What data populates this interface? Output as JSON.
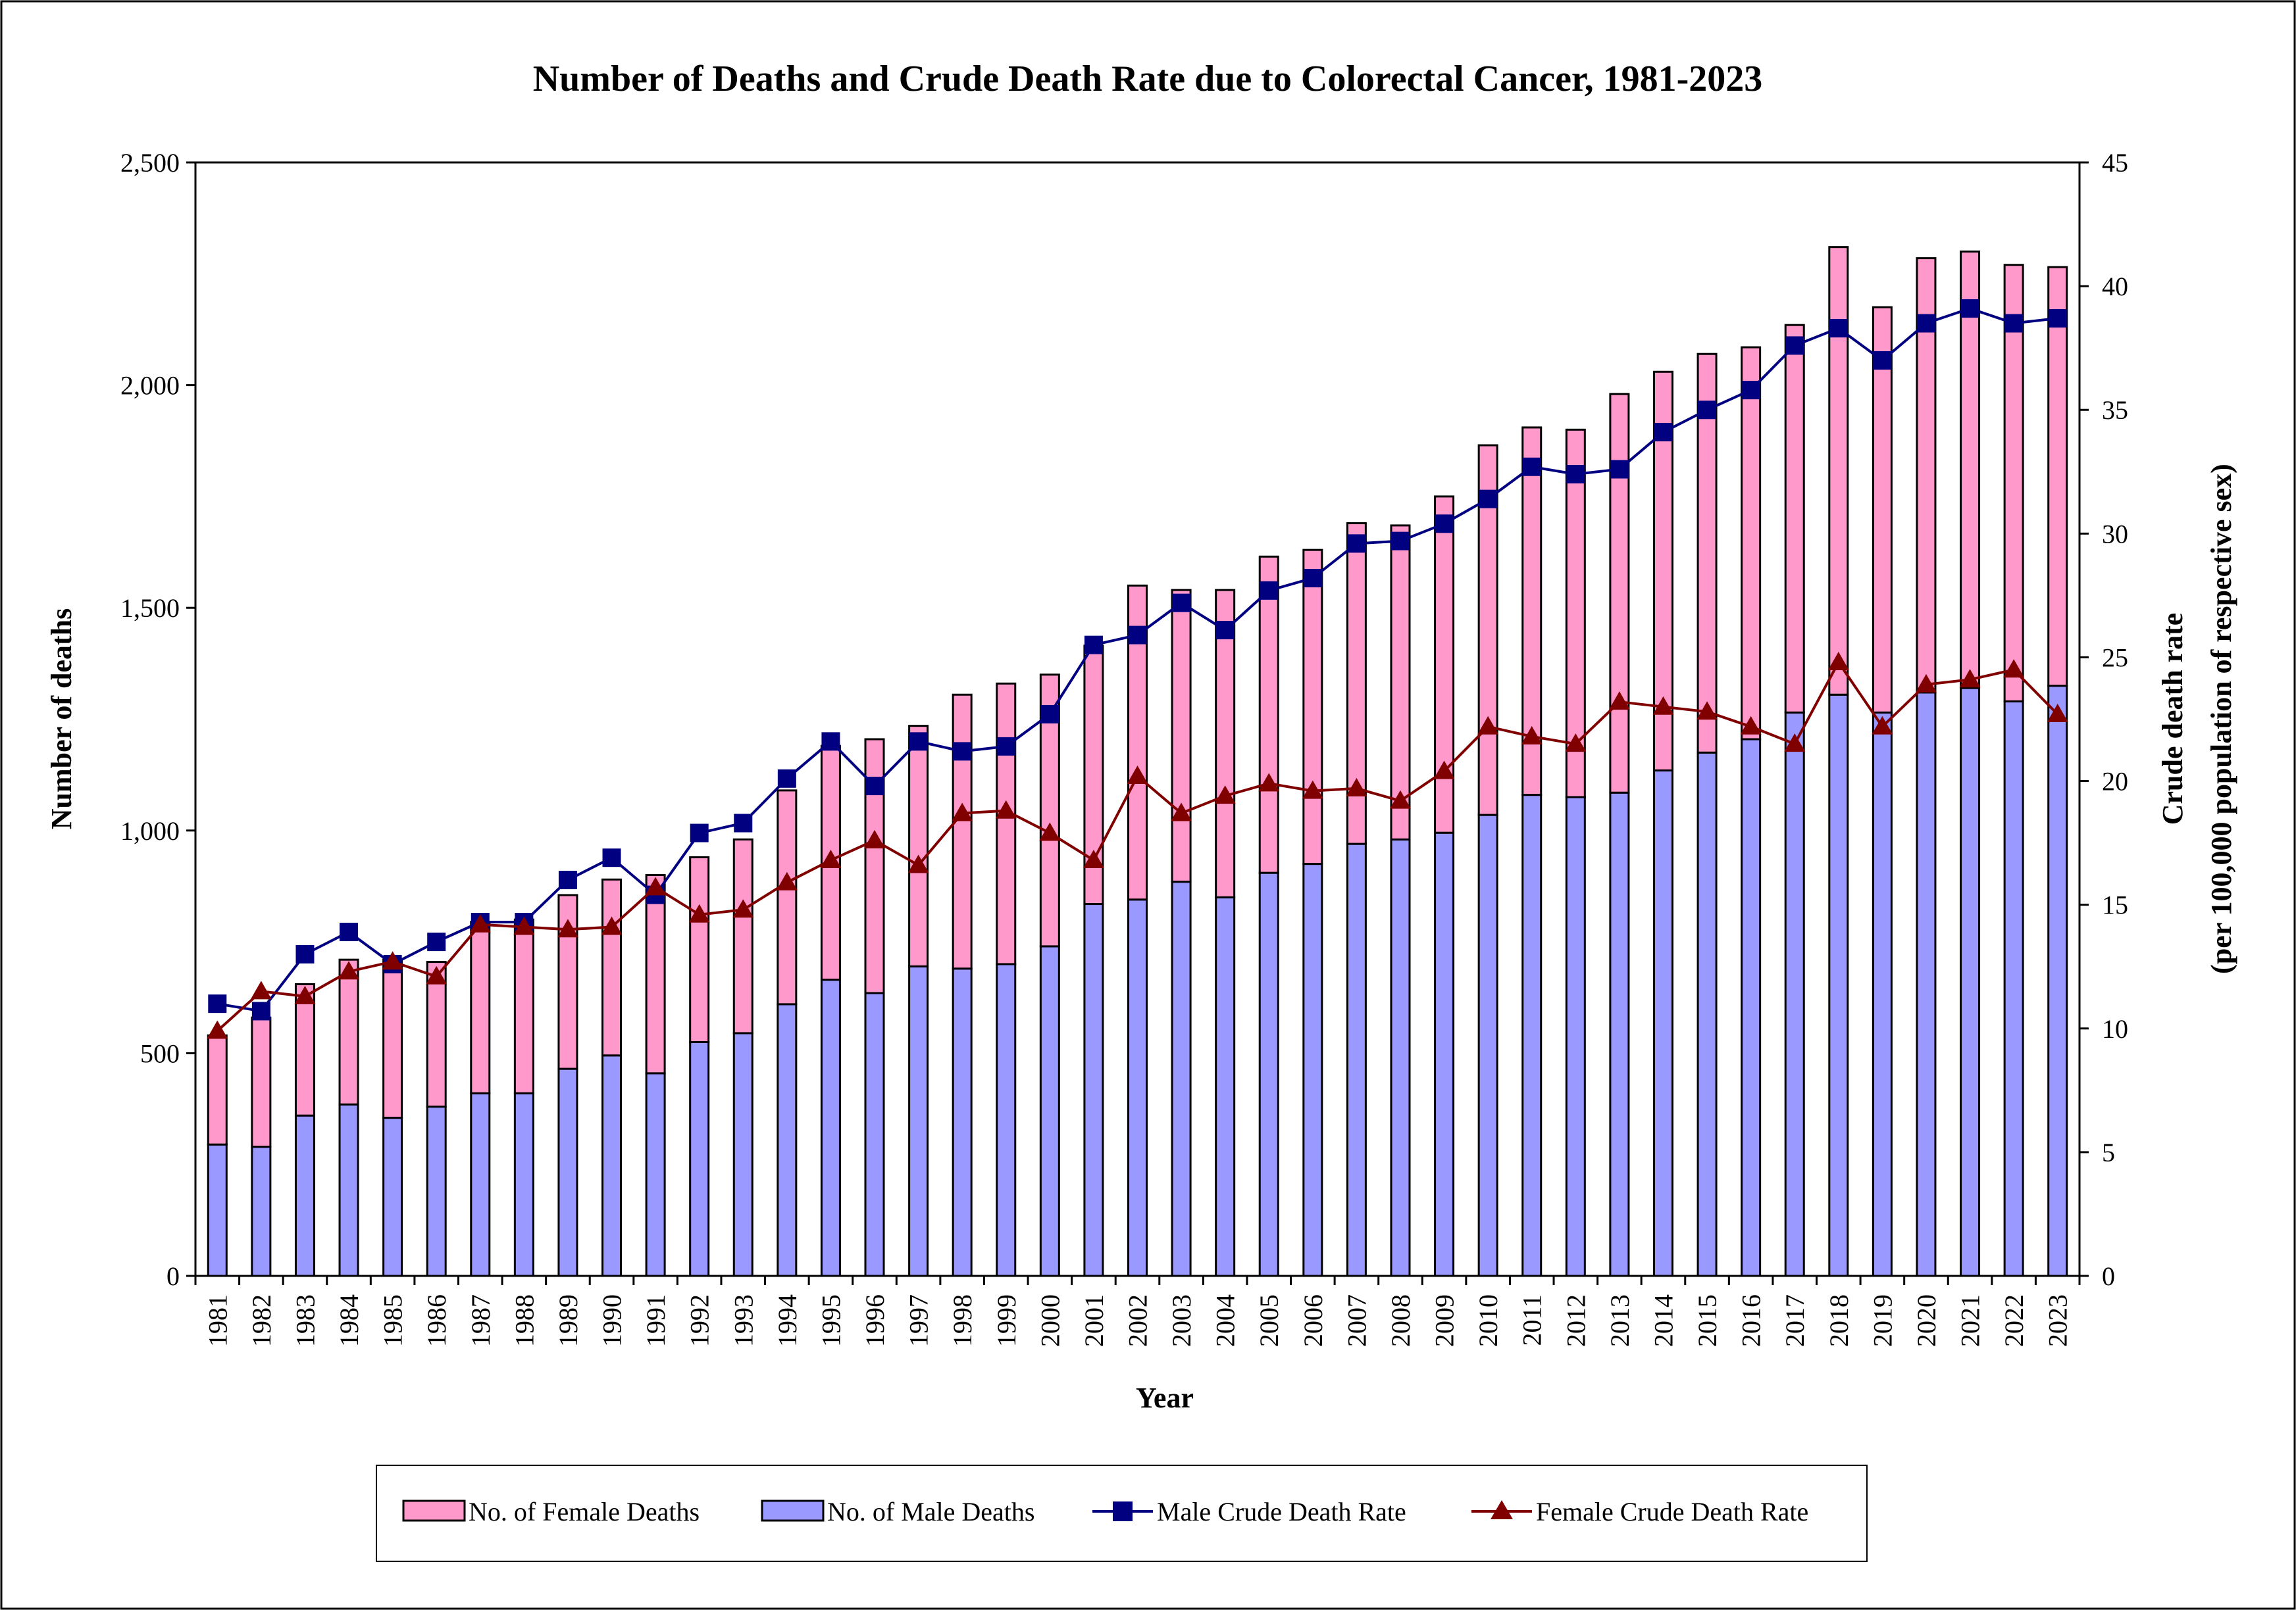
{
  "chart_data": {
    "type": "bar",
    "title": "Number of Deaths and Crude Death Rate due to Colorectal Cancer, 1981-2023",
    "xlabel": "Year",
    "ylabel": "Number of deaths",
    "y2label_line1": "Crude death rate",
    "y2label_line2": "(per 100,000 population of respective sex)",
    "ylim": [
      0,
      2500
    ],
    "y2lim": [
      0,
      45
    ],
    "yticks": [
      0,
      500,
      1000,
      1500,
      2000,
      2500
    ],
    "yticks_labels": [
      "0",
      "500",
      "1,000",
      "1,500",
      "2,000",
      "2,500"
    ],
    "y2ticks": [
      0,
      5,
      10,
      15,
      20,
      25,
      30,
      35,
      40,
      45
    ],
    "y2ticks_labels": [
      "0",
      "5",
      "10",
      "15",
      "20",
      "25",
      "30",
      "35",
      "40",
      "45"
    ],
    "grid": false,
    "legend_position": "bottom",
    "categories": [
      "1981",
      "1982",
      "1983",
      "1984",
      "1985",
      "1986",
      "1987",
      "1988",
      "1989",
      "1990",
      "1991",
      "1992",
      "1993",
      "1994",
      "1995",
      "1996",
      "1997",
      "1998",
      "1999",
      "2000",
      "2001",
      "2002",
      "2003",
      "2004",
      "2005",
      "2006",
      "2007",
      "2008",
      "2009",
      "2010",
      "2011",
      "2012",
      "2013",
      "2014",
      "2015",
      "2016",
      "2017",
      "2018",
      "2019",
      "2020",
      "2021",
      "2022",
      "2023"
    ],
    "series": [
      {
        "name": "No. of Female Deaths",
        "kind": "bar-stacked",
        "color": "#ff99cc",
        "values": [
          245,
          290,
          295,
          325,
          355,
          325,
          385,
          390,
          390,
          395,
          445,
          415,
          435,
          480,
          525,
          570,
          540,
          615,
          630,
          610,
          580,
          705,
          655,
          690,
          710,
          705,
          720,
          705,
          755,
          830,
          825,
          825,
          895,
          895,
          895,
          880,
          870,
          1005,
          910,
          975,
          980,
          980,
          940
        ]
      },
      {
        "name": "No. of Male Deaths",
        "kind": "bar-stacked",
        "color": "#9999ff",
        "values": [
          295,
          290,
          360,
          385,
          355,
          380,
          410,
          410,
          465,
          495,
          455,
          525,
          545,
          610,
          665,
          635,
          695,
          690,
          700,
          740,
          835,
          845,
          885,
          850,
          905,
          925,
          970,
          980,
          995,
          1035,
          1080,
          1075,
          1085,
          1135,
          1175,
          1205,
          1265,
          1305,
          1265,
          1310,
          1320,
          1290,
          1325
        ]
      },
      {
        "name": "Male Crude Death Rate",
        "kind": "line",
        "axis": "right",
        "color": "#000080",
        "marker": "square",
        "values": [
          11.0,
          10.7,
          13.0,
          13.9,
          12.6,
          13.5,
          14.3,
          14.3,
          16.0,
          16.9,
          15.4,
          17.9,
          18.3,
          20.1,
          21.6,
          19.8,
          21.6,
          21.2,
          21.4,
          22.7,
          25.5,
          25.9,
          27.2,
          26.1,
          27.7,
          28.2,
          29.6,
          29.7,
          30.4,
          31.4,
          32.7,
          32.4,
          32.6,
          34.1,
          35.0,
          35.8,
          37.6,
          38.3,
          37.0,
          38.5,
          39.1,
          38.5,
          38.7
        ]
      },
      {
        "name": "Female Crude Death Rate",
        "kind": "line",
        "axis": "right",
        "color": "#800000",
        "marker": "triangle",
        "values": [
          9.9,
          11.5,
          11.3,
          12.3,
          12.7,
          12.1,
          14.2,
          14.1,
          14.0,
          14.1,
          15.7,
          14.6,
          14.8,
          15.9,
          16.8,
          17.6,
          16.6,
          18.7,
          18.8,
          17.9,
          16.8,
          20.2,
          18.7,
          19.4,
          19.9,
          19.6,
          19.7,
          19.2,
          20.4,
          22.2,
          21.8,
          21.5,
          23.2,
          23.0,
          22.8,
          22.2,
          21.5,
          24.8,
          22.2,
          23.9,
          24.1,
          24.5,
          22.7
        ]
      }
    ]
  }
}
